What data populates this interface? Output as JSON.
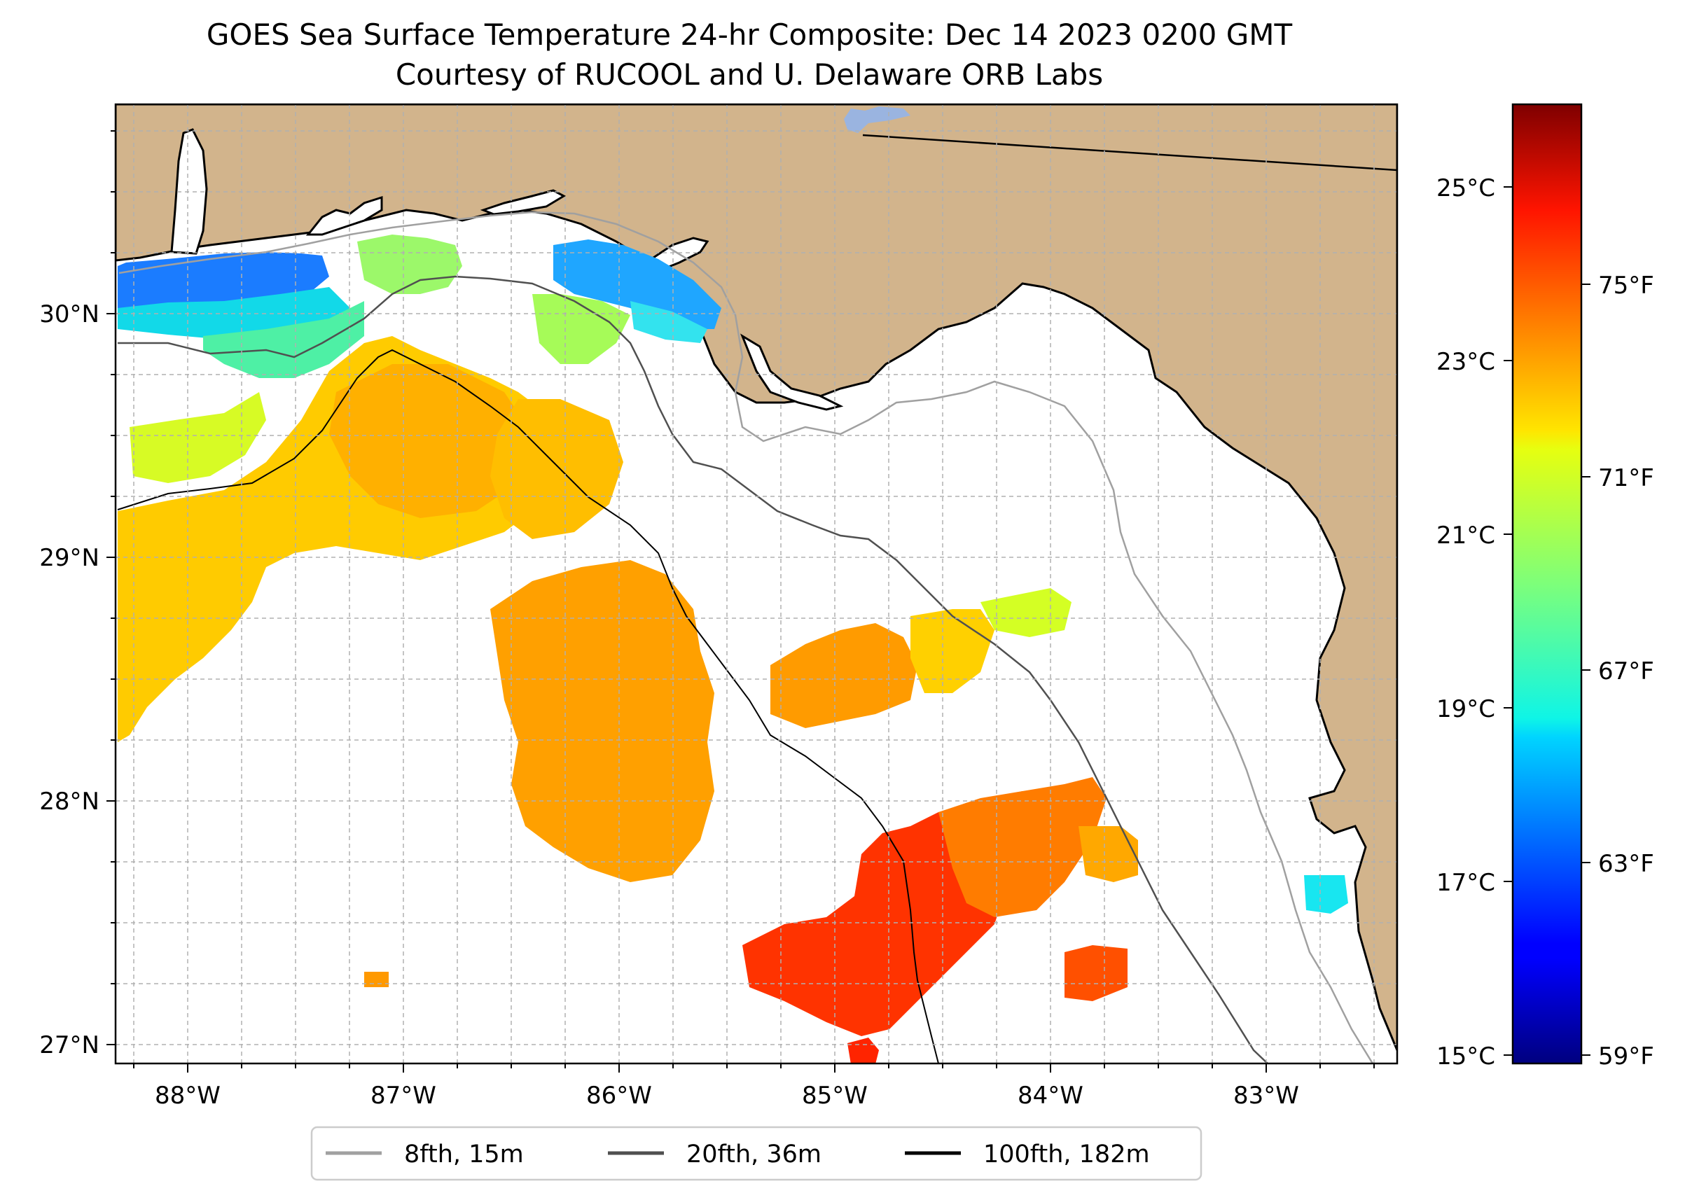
{
  "title": {
    "line1": "GOES Sea Surface Temperature 24-hr Composite: Dec 14 2023 0200 GMT",
    "line2": "Courtesy of RUCOOL and U. Delaware ORB Labs"
  },
  "map": {
    "x_ticks": [
      "88°W",
      "87°W",
      "86°W",
      "85°W",
      "84°W",
      "83°W"
    ],
    "y_ticks": [
      "30°N",
      "29°N",
      "28°N",
      "27°N"
    ],
    "colors": {
      "land": "#d2b48c",
      "ocean": "#ffffff",
      "grid": "#b0b0b0",
      "lake": "#9ab4e0"
    }
  },
  "colorbar": {
    "celsius_ticks": [
      "25°C",
      "23°C",
      "21°C",
      "19°C",
      "17°C",
      "15°C"
    ],
    "fahrenheit_ticks": [
      "75°F",
      "71°F",
      "67°F",
      "63°F",
      "59°F"
    ],
    "range_celsius": [
      15,
      26
    ],
    "colormap": "jet"
  },
  "legend": {
    "items": [
      {
        "label": "8fth, 15m",
        "color": "#a0a0a0"
      },
      {
        "label": "20fth, 36m",
        "color": "#505050"
      },
      {
        "label": "100fth, 182m",
        "color": "#000000"
      }
    ]
  }
}
